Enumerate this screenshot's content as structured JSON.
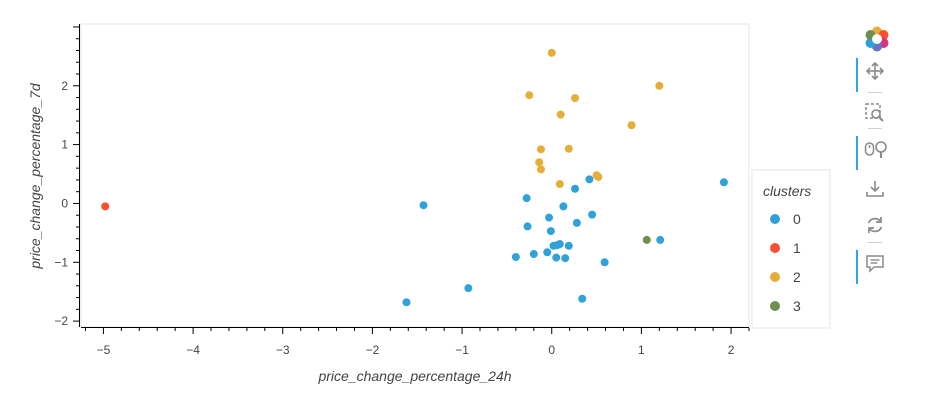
{
  "chart_data": {
    "type": "scatter",
    "xlabel": "price_change_percentage_24h",
    "ylabel": "price_change_percentage_7d",
    "xlim": [
      -5.25,
      2.2
    ],
    "ylim": [
      -2.1,
      3.05
    ],
    "x_ticks": [
      -5,
      -4,
      -3,
      -2,
      -1,
      0,
      1,
      2
    ],
    "y_ticks": [
      -2,
      -1,
      0,
      1,
      2
    ],
    "x_tick_labels": [
      "−5",
      "−4",
      "−3",
      "−2",
      "−1",
      "0",
      "1",
      "2"
    ],
    "y_tick_labels": [
      "−2",
      "−1",
      "0",
      "1",
      "2"
    ],
    "grid": false,
    "legend": {
      "title": "clusters",
      "placement": "right"
    },
    "series": [
      {
        "name": "0",
        "color": "#30a2da",
        "points": [
          [
            -1.43,
            -0.03
          ],
          [
            -1.62,
            -1.68
          ],
          [
            -0.93,
            -1.44
          ],
          [
            -0.28,
            0.09
          ],
          [
            -0.27,
            -0.39
          ],
          [
            -0.2,
            -0.86
          ],
          [
            -0.4,
            -0.91
          ],
          [
            -0.03,
            -0.24
          ],
          [
            -0.01,
            -0.47
          ],
          [
            -0.05,
            -0.83
          ],
          [
            0.02,
            -0.72
          ],
          [
            0.06,
            -0.71
          ],
          [
            0.09,
            -0.69
          ],
          [
            0.19,
            -0.72
          ],
          [
            0.05,
            -0.92
          ],
          [
            0.15,
            -0.93
          ],
          [
            0.13,
            -0.05
          ],
          [
            0.26,
            0.25
          ],
          [
            0.28,
            -0.33
          ],
          [
            0.42,
            0.41
          ],
          [
            0.45,
            -0.19
          ],
          [
            0.59,
            -1.0
          ],
          [
            0.34,
            -1.62
          ],
          [
            1.21,
            -0.62
          ],
          [
            1.92,
            0.36
          ]
        ]
      },
      {
        "name": "1",
        "color": "#fc4f30",
        "points": [
          [
            -4.98,
            -0.05
          ]
        ]
      },
      {
        "name": "2",
        "color": "#e5ae38",
        "points": [
          [
            0.0,
            2.56
          ],
          [
            -0.25,
            1.84
          ],
          [
            0.26,
            1.79
          ],
          [
            1.2,
            2.0
          ],
          [
            0.1,
            1.51
          ],
          [
            0.89,
            1.33
          ],
          [
            -0.12,
            0.92
          ],
          [
            0.19,
            0.93
          ],
          [
            -0.14,
            0.7
          ],
          [
            -0.12,
            0.58
          ],
          [
            0.09,
            0.33
          ],
          [
            0.5,
            0.48
          ],
          [
            0.52,
            0.45
          ]
        ]
      },
      {
        "name": "3",
        "color": "#6d904f",
        "points": [
          [
            1.06,
            -0.62
          ]
        ]
      }
    ]
  },
  "toolbar": {
    "tools": [
      {
        "name": "logo",
        "icon": "bokeh-logo-icon"
      },
      {
        "name": "pan",
        "icon": "pan-icon",
        "active": true
      },
      {
        "name": "box-zoom",
        "icon": "box-zoom-icon",
        "active": false
      },
      {
        "name": "wheel-zoom",
        "icon": "wheel-zoom-icon",
        "active": true
      },
      {
        "name": "save",
        "icon": "save-icon",
        "active": false
      },
      {
        "name": "reset",
        "icon": "reset-icon",
        "active": false
      },
      {
        "name": "hover",
        "icon": "hover-icon",
        "active": true
      }
    ]
  }
}
